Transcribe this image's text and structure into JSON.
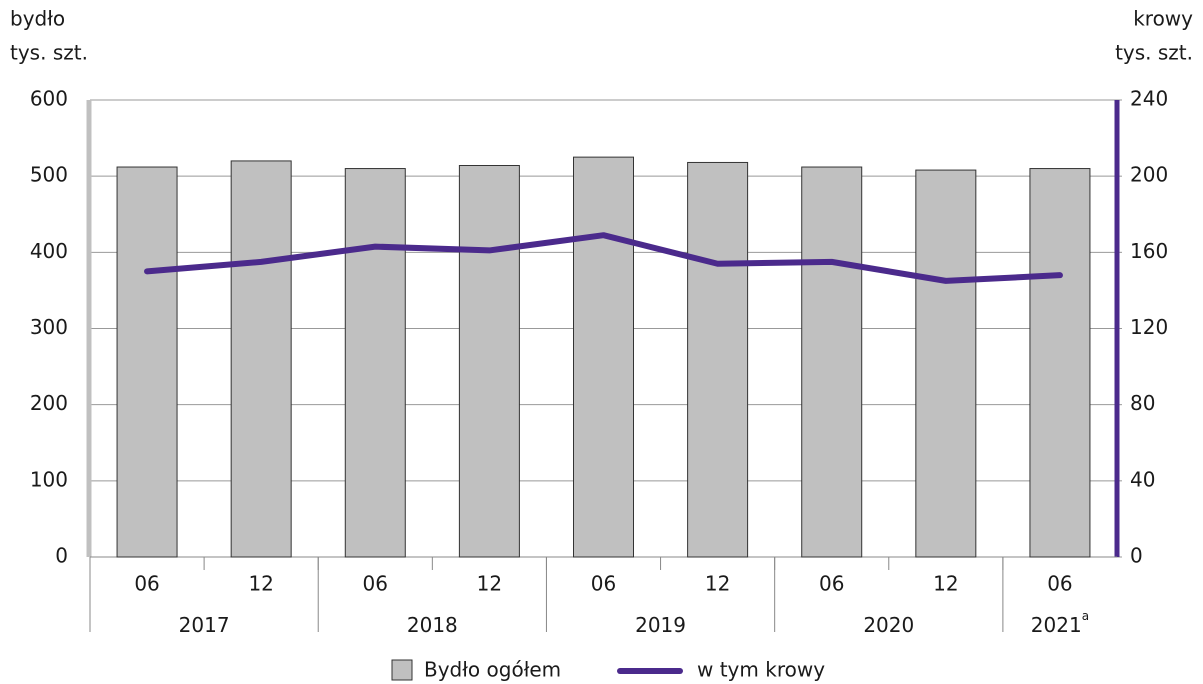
{
  "chart_data": {
    "type": "bar+line",
    "y_label": [
      "bydło",
      "tys. szt."
    ],
    "y2_label": [
      "krowy",
      "tys. szt."
    ],
    "categories": [
      "06",
      "12",
      "06",
      "12",
      "06",
      "12",
      "06",
      "12",
      "06"
    ],
    "category_groups": [
      {
        "label": "2017",
        "size": 2
      },
      {
        "label": "2018",
        "size": 2
      },
      {
        "label": "2019",
        "size": 2
      },
      {
        "label": "2020",
        "size": 2
      },
      {
        "label": "2021",
        "note": "a",
        "size": 1
      }
    ],
    "series": [
      {
        "name": "Bydło ogółem",
        "type": "bar",
        "color": "#c0c0c0",
        "values": [
          512,
          520,
          510,
          514,
          525,
          518,
          512,
          508,
          510
        ]
      },
      {
        "name": "w tym krowy",
        "type": "line",
        "axis": "y2",
        "color": "#4b2a8c",
        "values": [
          150,
          155,
          163,
          161,
          169,
          154,
          155,
          145,
          148
        ]
      }
    ],
    "ylim": [
      0,
      600
    ],
    "yticks": [
      0,
      100,
      200,
      300,
      400,
      500,
      600
    ],
    "y2lim": [
      0,
      240
    ],
    "y2ticks": [
      0,
      40,
      80,
      120,
      160,
      200,
      240
    ],
    "grid": true
  }
}
